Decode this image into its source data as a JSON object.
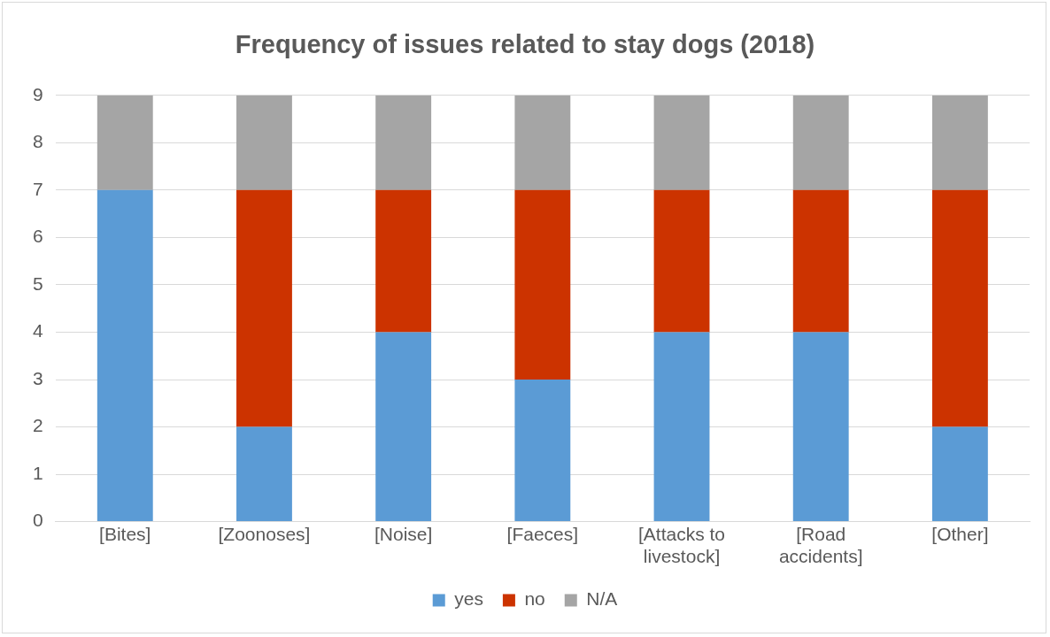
{
  "chart_data": {
    "type": "bar",
    "title": "Frequency of issues related to stay dogs (2018)",
    "categories": [
      "[Bites]",
      "[Zoonoses]",
      "[Noise]",
      "[Faeces]",
      "[Attacks to livestock]",
      "[Road accidents]",
      "[Other]"
    ],
    "series": [
      {
        "name": "yes",
        "color": "#5b9bd5",
        "values": [
          7,
          2,
          4,
          3,
          4,
          4,
          2
        ]
      },
      {
        "name": "no",
        "color": "#cc3300",
        "values": [
          0,
          5,
          3,
          4,
          3,
          3,
          5
        ]
      },
      {
        "name": "N/A",
        "color": "#a5a5a5",
        "values": [
          2,
          2,
          2,
          2,
          2,
          2,
          2
        ]
      }
    ],
    "stacked": true,
    "ylim": [
      0,
      9
    ],
    "yticks": [
      0,
      1,
      2,
      3,
      4,
      5,
      6,
      7,
      8,
      9
    ],
    "grid": "y",
    "legend": "bottom"
  }
}
